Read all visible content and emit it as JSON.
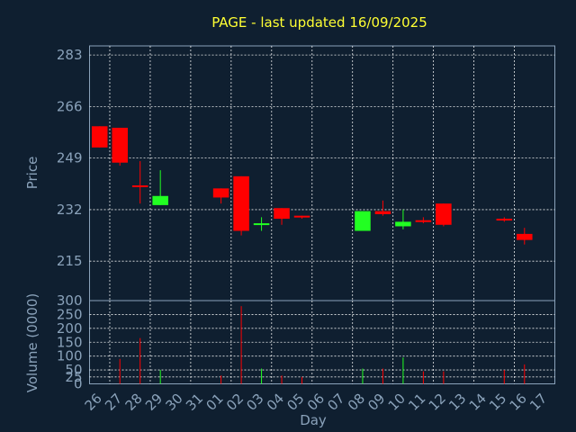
{
  "chart_data": [
    {
      "type": "candlestick",
      "title": "PAGE - last updated 16/09/2025",
      "ylabel": "Price",
      "ylim": [
        202,
        286
      ],
      "yticks": [
        215,
        232,
        249,
        266,
        283
      ],
      "grid": true,
      "colors": {
        "up": "#22ff22",
        "down": "#ff0000"
      },
      "x": [
        "26",
        "27",
        "28",
        "29",
        "30",
        "31",
        "01",
        "02",
        "03",
        "04",
        "05",
        "06",
        "07",
        "08",
        "09",
        "10",
        "11",
        "12",
        "13",
        "14",
        "15",
        "16",
        "17"
      ],
      "candles": [
        {
          "i": 0,
          "open": 259.5,
          "close": 252.5,
          "high": 259.5,
          "low": 252.5
        },
        {
          "i": 1,
          "open": 259,
          "close": 247.5,
          "high": 259,
          "low": 246.5
        },
        {
          "i": 2,
          "open": 240,
          "close": 239.5,
          "high": 248,
          "low": 234
        },
        {
          "i": 3,
          "open": 233.5,
          "close": 236.5,
          "high": 245,
          "low": 233.5
        },
        {
          "i": 6,
          "open": 239,
          "close": 236,
          "high": 239,
          "low": 234
        },
        {
          "i": 7,
          "open": 243,
          "close": 225,
          "high": 243,
          "low": 223.5
        },
        {
          "i": 8,
          "open": 227,
          "close": 227.5,
          "high": 229.5,
          "low": 225
        },
        {
          "i": 9,
          "open": 232.5,
          "close": 229,
          "high": 232.5,
          "low": 227
        },
        {
          "i": 10,
          "open": 230,
          "close": 229.5,
          "high": 230,
          "low": 229
        },
        {
          "i": 13,
          "open": 225,
          "close": 231.5,
          "high": 231.5,
          "low": 225
        },
        {
          "i": 14,
          "open": 231.5,
          "close": 230.5,
          "high": 235,
          "low": 230
        },
        {
          "i": 15,
          "open": 226.5,
          "close": 228,
          "high": 232,
          "low": 225.5
        },
        {
          "i": 16,
          "open": 228.5,
          "close": 228,
          "high": 229.5,
          "low": 227.5
        },
        {
          "i": 17,
          "open": 234,
          "close": 227,
          "high": 234,
          "low": 226.5
        },
        {
          "i": 20,
          "open": 229,
          "close": 228.5,
          "high": 229.5,
          "low": 228
        },
        {
          "i": 21,
          "open": 224,
          "close": 222,
          "high": 226,
          "low": 220.5
        }
      ]
    },
    {
      "type": "bar",
      "ylabel": "Volume (0000)",
      "xlabel": "Day",
      "ylim": [
        0,
        300
      ],
      "yticks": [
        0,
        25,
        50,
        100,
        150,
        200,
        250,
        300
      ],
      "grid": true,
      "categories": [
        "26",
        "27",
        "28",
        "29",
        "30",
        "31",
        "01",
        "02",
        "03",
        "04",
        "05",
        "06",
        "07",
        "08",
        "09",
        "10",
        "11",
        "12",
        "13",
        "14",
        "15",
        "16",
        "17"
      ],
      "volumes": [
        {
          "i": 1,
          "value": 90,
          "dir": "down"
        },
        {
          "i": 2,
          "value": 165,
          "dir": "down"
        },
        {
          "i": 3,
          "value": 50,
          "dir": "up"
        },
        {
          "i": 6,
          "value": 30,
          "dir": "down"
        },
        {
          "i": 7,
          "value": 280,
          "dir": "down"
        },
        {
          "i": 8,
          "value": 55,
          "dir": "up"
        },
        {
          "i": 9,
          "value": 30,
          "dir": "down"
        },
        {
          "i": 10,
          "value": 25,
          "dir": "down"
        },
        {
          "i": 13,
          "value": 55,
          "dir": "up"
        },
        {
          "i": 14,
          "value": 55,
          "dir": "down"
        },
        {
          "i": 15,
          "value": 95,
          "dir": "up"
        },
        {
          "i": 16,
          "value": 45,
          "dir": "down"
        },
        {
          "i": 17,
          "value": 45,
          "dir": "down"
        },
        {
          "i": 20,
          "value": 50,
          "dir": "down"
        },
        {
          "i": 21,
          "value": 70,
          "dir": "down"
        }
      ]
    }
  ]
}
